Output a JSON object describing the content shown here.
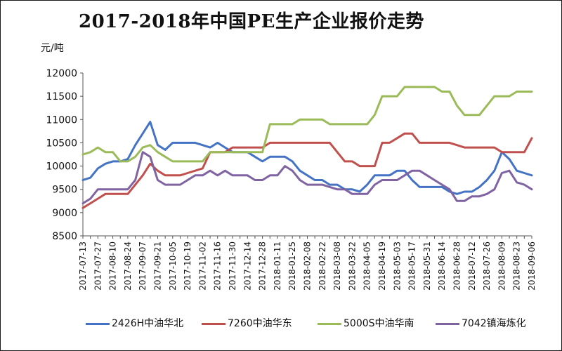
{
  "chart_data": {
    "type": "line",
    "title": "2017-2018年中国PE生产企业报价走势",
    "ylabel": "元/吨",
    "xlabel": "",
    "ylim": [
      8500,
      12000
    ],
    "yticks": [
      8500,
      9000,
      9500,
      10000,
      10500,
      11000,
      11500,
      12000
    ],
    "grid": false,
    "legend_position": "bottom",
    "x": [
      "2017-07-13",
      "2017-07-20",
      "2017-07-27",
      "2017-08-03",
      "2017-08-10",
      "2017-08-17",
      "2017-08-24",
      "2017-08-31",
      "2017-09-07",
      "2017-09-14",
      "2017-09-21",
      "2017-09-28",
      "2017-10-05",
      "2017-10-12",
      "2017-10-19",
      "2017-10-26",
      "2017-11-02",
      "2017-11-09",
      "2017-11-16",
      "2017-11-23",
      "2017-11-30",
      "2017-12-07",
      "2017-12-14",
      "2017-12-21",
      "2017-12-28",
      "2018-01-04",
      "2018-01-11",
      "2018-01-18",
      "2018-01-25",
      "2018-02-01",
      "2018-02-08",
      "2018-02-15",
      "2018-02-22",
      "2018-03-01",
      "2018-03-08",
      "2018-03-15",
      "2018-03-22",
      "2018-03-29",
      "2018-04-05",
      "2018-04-12",
      "2018-04-19",
      "2018-04-26",
      "2018-05-03",
      "2018-05-10",
      "2018-05-17",
      "2018-05-24",
      "2018-05-31",
      "2018-06-07",
      "2018-06-14",
      "2018-06-21",
      "2018-06-28",
      "2018-07-05",
      "2018-07-12",
      "2018-07-19",
      "2018-07-26",
      "2018-08-02",
      "2018-08-09",
      "2018-08-16",
      "2018-08-23",
      "2018-08-30",
      "2018-09-06"
    ],
    "xtick_labels": [
      "2017-07-13",
      "2017-07-27",
      "2017-08-10",
      "2017-08-24",
      "2017-09-07",
      "2017-09-21",
      "2017-10-05",
      "2017-10-19",
      "2017-11-02",
      "2017-11-16",
      "2017-11-30",
      "2017-12-14",
      "2017-12-28",
      "2018-01-11",
      "2018-01-25",
      "2018-02-08",
      "2018-02-22",
      "2018-03-08",
      "2018-03-22",
      "2018-04-05",
      "2018-04-19",
      "2018-05-03",
      "2018-05-17",
      "2018-05-31",
      "2018-06-14",
      "2018-06-28",
      "2018-07-12",
      "2018-07-26",
      "2018-08-09",
      "2018-08-23",
      "2018-09-06"
    ],
    "series": [
      {
        "name": "2426H中油华北",
        "color": "#4472c4",
        "values": [
          9700,
          9750,
          9950,
          10050,
          10100,
          10100,
          10150,
          10450,
          10700,
          10950,
          10450,
          10350,
          10500,
          10500,
          10500,
          10500,
          10450,
          10400,
          10500,
          10400,
          10300,
          10300,
          10300,
          10200,
          10100,
          10200,
          10200,
          10200,
          10100,
          9900,
          9800,
          9700,
          9700,
          9600,
          9600,
          9500,
          9500,
          9450,
          9600,
          9800,
          9800,
          9800,
          9900,
          9900,
          9700,
          9550,
          9550,
          9550,
          9550,
          9450,
          9400,
          9450,
          9450,
          9550,
          9700,
          9900,
          10300,
          10150,
          9900,
          9850,
          9800
        ]
      },
      {
        "name": "7260中油华东",
        "color": "#c0504d",
        "values": [
          9100,
          9200,
          9300,
          9400,
          9400,
          9400,
          9400,
          9600,
          9800,
          10050,
          9900,
          9800,
          9800,
          9800,
          9850,
          9900,
          9950,
          10300,
          10300,
          10300,
          10400,
          10400,
          10400,
          10400,
          10400,
          10500,
          10500,
          10500,
          10500,
          10500,
          10500,
          10500,
          10500,
          10500,
          10300,
          10100,
          10100,
          10000,
          10000,
          10000,
          10500,
          10500,
          10600,
          10700,
          10700,
          10500,
          10500,
          10500,
          10500,
          10500,
          10450,
          10400,
          10400,
          10400,
          10400,
          10400,
          10300,
          10300,
          10300,
          10300,
          10600
        ]
      },
      {
        "name": "5000S中油华南",
        "color": "#9bbb59",
        "values": [
          10250,
          10300,
          10400,
          10300,
          10300,
          10100,
          10100,
          10200,
          10400,
          10450,
          10300,
          10200,
          10100,
          10100,
          10100,
          10100,
          10100,
          10300,
          10300,
          10300,
          10300,
          10300,
          10300,
          10300,
          10300,
          10900,
          10900,
          10900,
          10900,
          11000,
          11000,
          11000,
          11000,
          10900,
          10900,
          10900,
          10900,
          10900,
          10900,
          11100,
          11500,
          11500,
          11500,
          11700,
          11700,
          11700,
          11700,
          11700,
          11600,
          11600,
          11300,
          11100,
          11100,
          11100,
          11300,
          11500,
          11500,
          11500,
          11600,
          11600,
          11600
        ]
      },
      {
        "name": "7042镇海炼化",
        "color": "#8064a2",
        "values": [
          9200,
          9300,
          9500,
          9500,
          9500,
          9500,
          9500,
          9700,
          10300,
          10200,
          9700,
          9600,
          9600,
          9600,
          9700,
          9800,
          9800,
          9900,
          9800,
          9900,
          9800,
          9800,
          9800,
          9700,
          9700,
          9800,
          9800,
          10000,
          9900,
          9700,
          9600,
          9600,
          9600,
          9550,
          9500,
          9500,
          9400,
          9400,
          9400,
          9600,
          9700,
          9700,
          9700,
          9800,
          9900,
          9900,
          9800,
          9700,
          9600,
          9500,
          9250,
          9250,
          9350,
          9350,
          9400,
          9500,
          9850,
          9900,
          9650,
          9600,
          9500
        ]
      }
    ]
  }
}
